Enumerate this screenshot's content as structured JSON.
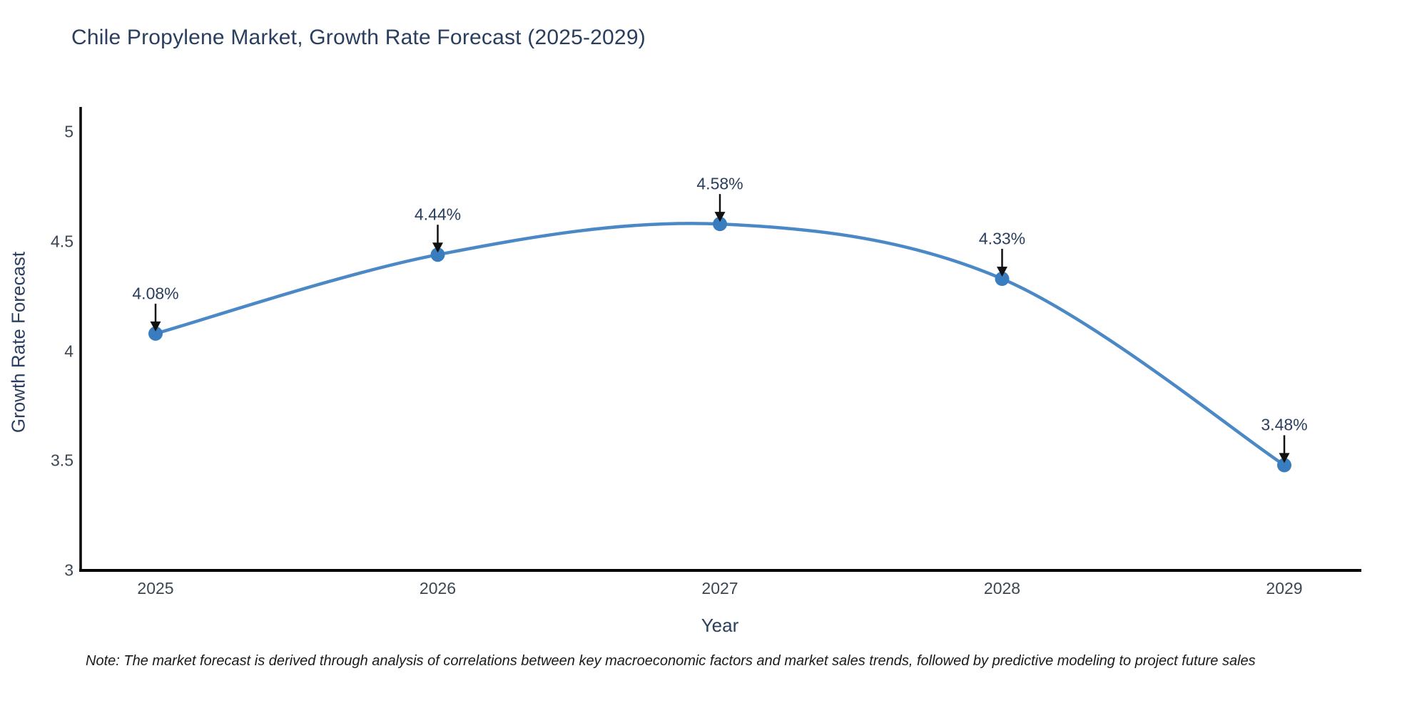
{
  "chart_data": {
    "type": "line",
    "title": "Chile Propylene Market, Growth Rate Forecast (2025-2029)",
    "xlabel": "Year",
    "ylabel": "Growth Rate Forecast",
    "categories": [
      "2025",
      "2026",
      "2027",
      "2028",
      "2029"
    ],
    "series": [
      {
        "name": "Growth Rate Forecast",
        "values": [
          4.08,
          4.44,
          4.58,
          4.33,
          3.48
        ],
        "point_labels": [
          "4.08%",
          "4.44%",
          "4.58%",
          "4.33%",
          "3.48%"
        ]
      }
    ],
    "ylim": [
      3,
      5
    ],
    "yticks": [
      3,
      3.5,
      4,
      4.5,
      5
    ],
    "ytick_labels": [
      "3",
      "3.5",
      "4",
      "4.5",
      "5"
    ],
    "line_shape": "spline",
    "grid": false,
    "legend_position": "none",
    "markers": true,
    "annotation_arrows": true,
    "colors": {
      "line": "#4a88c6",
      "marker": "#3a7dbf",
      "arrow": "#111111",
      "axis": "#000000",
      "title_text": "#2a3f5f",
      "tick_text": "#3b4752",
      "note_text": "#1a1a1a"
    }
  },
  "footer": {
    "note": "Note: The market forecast is derived through analysis of correlations between key macroeconomic factors and market sales trends, followed by predictive modeling to project future sales"
  }
}
